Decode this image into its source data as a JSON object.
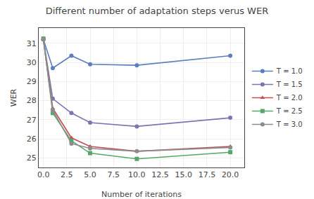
{
  "chart_data": {
    "type": "line",
    "title": "Different number of adaptation steps verus WER",
    "xlabel": "Number of iterations",
    "ylabel": "WER",
    "x": [
      0,
      1,
      3,
      5,
      10,
      20
    ],
    "series": [
      {
        "name": "T = 1.0",
        "color": "#5c7dbe",
        "marker": "circle",
        "values": [
          31.2,
          29.7,
          30.35,
          29.9,
          29.85,
          30.35
        ]
      },
      {
        "name": "T = 1.5",
        "color": "#8172b2",
        "marker": "circle",
        "values": [
          31.2,
          28.1,
          27.35,
          26.85,
          26.65,
          27.1
        ]
      },
      {
        "name": "T = 2.0",
        "color": "#c44e52",
        "marker": "triangle-up",
        "values": [
          31.2,
          27.6,
          26.05,
          25.6,
          25.35,
          25.6
        ]
      },
      {
        "name": "T = 2.5",
        "color": "#55a868",
        "marker": "square",
        "values": [
          31.25,
          27.35,
          25.9,
          25.25,
          24.95,
          25.3
        ]
      },
      {
        "name": "T = 3.0",
        "color": "#8c8c8c",
        "marker": "circle",
        "values": [
          31.2,
          27.5,
          25.75,
          25.5,
          25.35,
          25.55
        ]
      }
    ],
    "xlim": [
      -0.5,
      21.5
    ],
    "ylim": [
      24.5,
      31.8
    ],
    "xticks": [
      {
        "value": 0,
        "label": "0.0"
      },
      2.5,
      {
        "value": 5,
        "label": "5.0"
      },
      7.5,
      {
        "value": 10,
        "label": "10.0"
      },
      12.5,
      {
        "value": 15,
        "label": "15.0"
      },
      17.5,
      {
        "value": 20,
        "label": "20.0"
      }
    ],
    "yticks": [
      25,
      26,
      27,
      28,
      29,
      30,
      31
    ],
    "grid": true,
    "legend": "right"
  }
}
